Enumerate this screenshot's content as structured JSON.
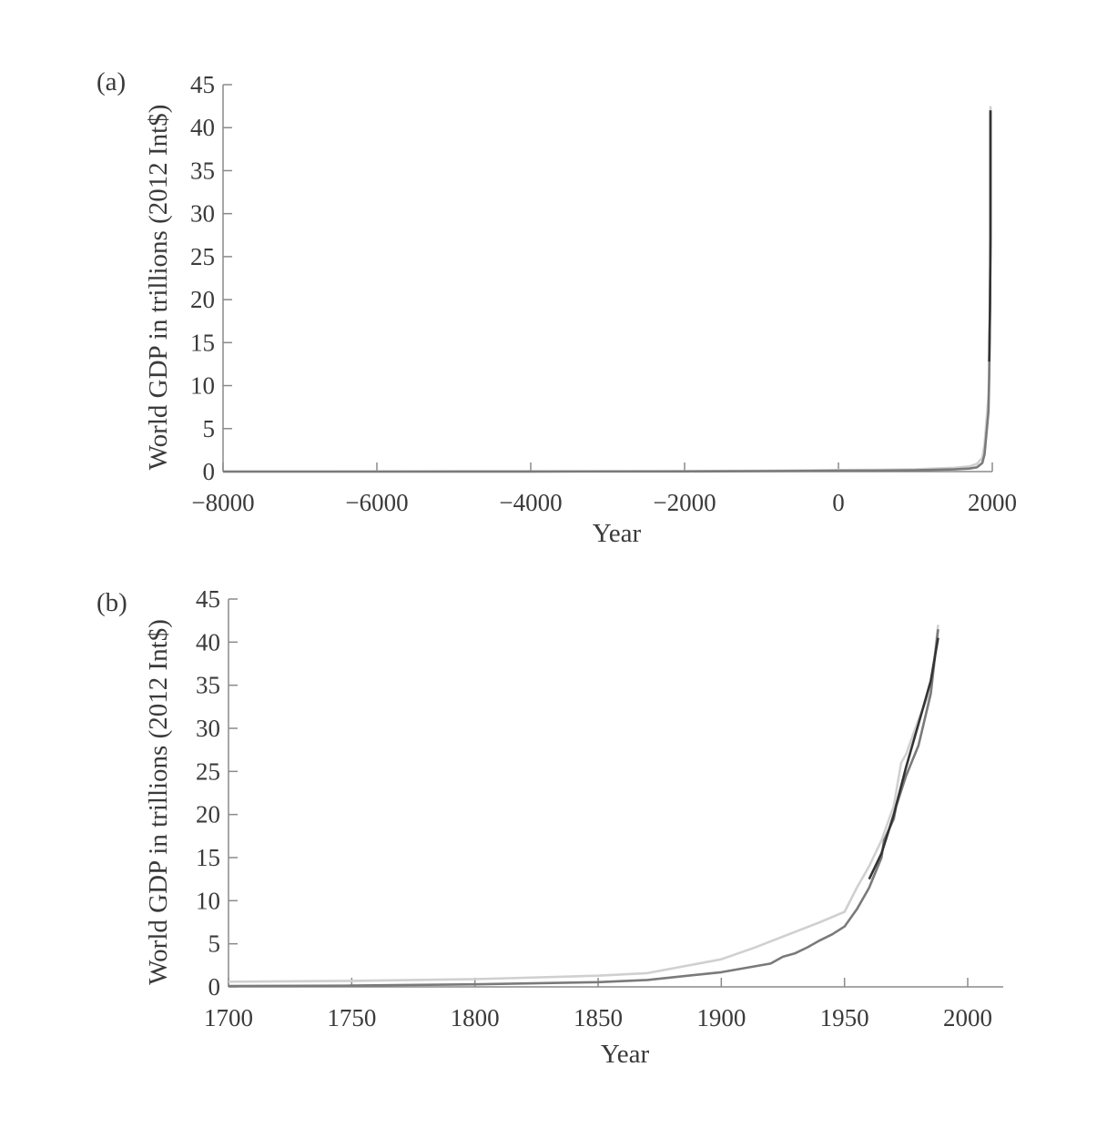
{
  "chart_data": [
    {
      "panel_label": "(a)",
      "type": "line",
      "xlabel": "Year",
      "ylabel": "World GDP in trillions (2012 Int$)",
      "xlim": [
        -8000,
        2000
      ],
      "ylim": [
        0,
        45
      ],
      "xticks": [
        -8000,
        -6000,
        -4000,
        -2000,
        0,
        2000
      ],
      "xtick_labels": [
        "−8000",
        "−6000",
        "−4000",
        "−2000",
        "0",
        "2000"
      ],
      "yticks": [
        0,
        5,
        10,
        15,
        20,
        25,
        30,
        35,
        40,
        45
      ],
      "ytick_labels": [
        "0",
        "5",
        "10",
        "15",
        "20",
        "25",
        "30",
        "35",
        "40",
        "45"
      ],
      "series": [
        {
          "color": "#cfcfcf",
          "x": [
            -8000,
            -6000,
            -4000,
            -2000,
            -1000,
            0,
            500,
            1000,
            1500,
            1700,
            1800,
            1870,
            1900,
            1950,
            1960,
            1970,
            1980,
            1990,
            2000,
            2010,
            2015
          ],
          "y": [
            0.0,
            0.01,
            0.02,
            0.05,
            0.1,
            0.18,
            0.2,
            0.26,
            0.43,
            0.6,
            0.9,
            1.6,
            3.2,
            8.7,
            12.0,
            20.0,
            30.0,
            35.0,
            38.0,
            41.0,
            42.5
          ]
        },
        {
          "color": "#7a7a7a",
          "x": [
            -8000,
            -6000,
            -4000,
            -2000,
            -1000,
            0,
            500,
            1000,
            1500,
            1700,
            1800,
            1870,
            1900,
            1950,
            1960,
            1970,
            1980,
            1990,
            2000,
            2010,
            2015
          ],
          "y": [
            0.0,
            0.0,
            0.01,
            0.02,
            0.05,
            0.1,
            0.12,
            0.15,
            0.25,
            0.35,
            0.5,
            1.0,
            2.0,
            7.0,
            11.0,
            19.0,
            27.0,
            34.0,
            38.0,
            41.0,
            42.0
          ]
        },
        {
          "color": "#333333",
          "x": [
            1960,
            1970,
            1980,
            1990,
            2000,
            2010,
            2015
          ],
          "y": [
            12.8,
            19.5,
            27.0,
            34.0,
            38.0,
            41.0,
            42.0
          ]
        }
      ]
    },
    {
      "panel_label": "(b)",
      "type": "line",
      "xlabel": "Year",
      "ylabel": "World GDP in trillions (2012 Int$)",
      "xlim": [
        1700,
        2015
      ],
      "ylim": [
        0,
        45
      ],
      "xticks": [
        1700,
        1750,
        1800,
        1850,
        1900,
        1950,
        2000
      ],
      "xtick_labels": [
        "1700",
        "1750",
        "1800",
        "1850",
        "1900",
        "1950",
        "2000"
      ],
      "yticks": [
        0,
        5,
        10,
        15,
        20,
        25,
        30,
        35,
        40,
        45
      ],
      "ytick_labels": [
        "0",
        "5",
        "10",
        "15",
        "20",
        "25",
        "30",
        "35",
        "40",
        "45"
      ],
      "series": [
        {
          "color": "#d0d0d0",
          "x": [
            1700,
            1750,
            1800,
            1850,
            1870,
            1900,
            1913,
            1940,
            1950,
            1955,
            1960,
            1965,
            1970,
            1973,
            1975,
            1980,
            1985,
            1988
          ],
          "y": [
            0.6,
            0.7,
            0.9,
            1.3,
            1.6,
            3.2,
            4.5,
            7.5,
            8.7,
            11.5,
            14.0,
            17.0,
            21.0,
            26.0,
            27.0,
            31.0,
            34.5,
            42.0
          ]
        },
        {
          "color": "#7a7a7a",
          "x": [
            1700,
            1750,
            1800,
            1850,
            1870,
            1900,
            1920,
            1925,
            1930,
            1935,
            1940,
            1945,
            1950,
            1955,
            1960,
            1965,
            1966,
            1970,
            1971,
            1975,
            1980,
            1985,
            1988
          ],
          "y": [
            0.1,
            0.15,
            0.3,
            0.55,
            0.8,
            1.7,
            2.7,
            3.5,
            3.9,
            4.6,
            5.4,
            6.1,
            7.0,
            9.0,
            11.5,
            15.0,
            17.0,
            19.5,
            21.0,
            24.5,
            28.0,
            34.0,
            41.5
          ]
        },
        {
          "color": "#333333",
          "x": [
            1960,
            1965,
            1970,
            1975,
            1980,
            1985,
            1988
          ],
          "y": [
            12.5,
            15.5,
            20.0,
            25.5,
            30.5,
            35.5,
            40.5
          ]
        }
      ]
    }
  ]
}
